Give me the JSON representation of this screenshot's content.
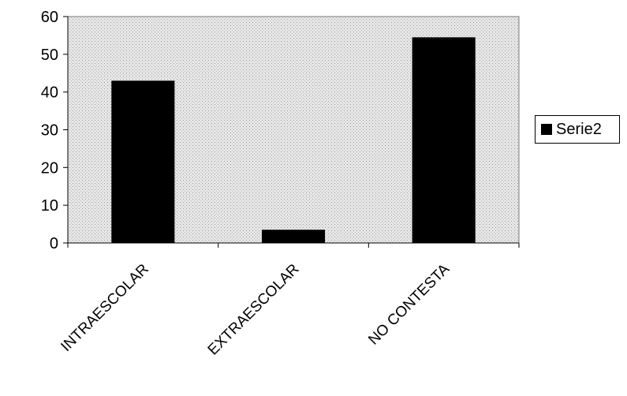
{
  "chart_data": {
    "type": "bar",
    "categories": [
      "INTRAESCOLAR",
      "EXTRAESCOLAR",
      "NO CONTESTA"
    ],
    "series": [
      {
        "name": "Serie2",
        "values": [
          43,
          3.5,
          54.5
        ]
      }
    ],
    "title": "",
    "xlabel": "",
    "ylabel": "",
    "ylim": [
      0,
      60
    ],
    "yticks": [
      "0",
      "10",
      "20",
      "30",
      "40",
      "50",
      "60"
    ],
    "grid": false,
    "legend": "right",
    "colors": {
      "bar": "#000000",
      "plot_background": "#d9d9d9"
    }
  }
}
